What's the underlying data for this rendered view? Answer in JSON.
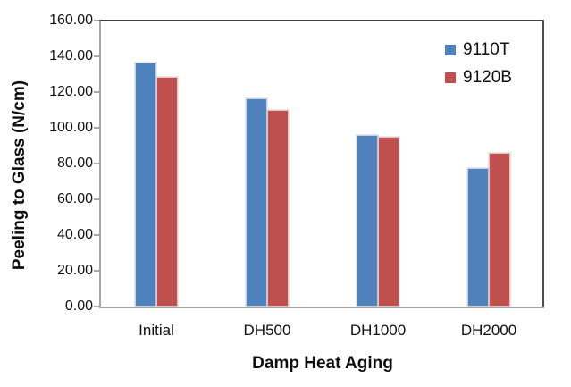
{
  "chart_data": {
    "type": "bar",
    "title": "",
    "categories": [
      "Initial",
      "DH500",
      "DH1000",
      "DH2000"
    ],
    "series": [
      {
        "name": "9110T",
        "color": "#4F81BD",
        "values": [
          136.5,
          116.5,
          96.0,
          77.5
        ]
      },
      {
        "name": "9120B",
        "color": "#C0504D",
        "values": [
          128.5,
          110.0,
          95.0,
          86.0
        ]
      }
    ],
    "xlabel": "Damp Heat Aging",
    "ylabel": "Peeling to Glass (N/cm)",
    "ylim": [
      0,
      160
    ],
    "y_tick_step": 20,
    "y_tick_labels": [
      "0.00",
      "20.00",
      "40.00",
      "60.00",
      "80.00",
      "100.00",
      "120.00",
      "140.00",
      "160.00"
    ],
    "grid": false,
    "legend_position": "inside-top-right"
  }
}
